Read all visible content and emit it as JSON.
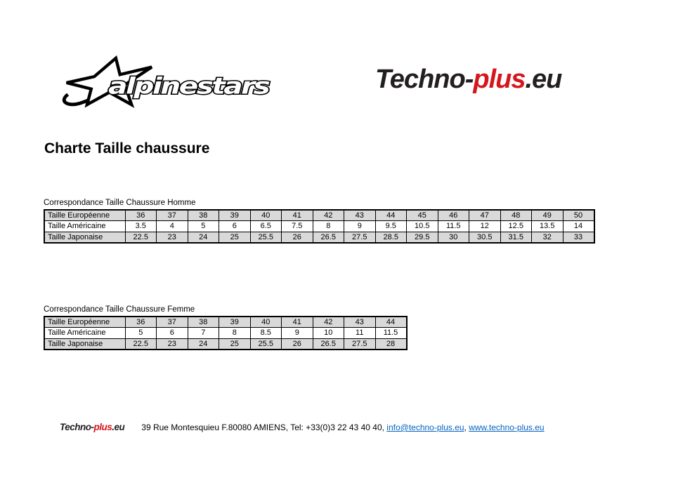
{
  "page": {
    "title": "Charte Taille chaussure"
  },
  "logos": {
    "alpinestars": {
      "text": "alpinestars"
    },
    "technoplus": {
      "part_black1": "Techno-",
      "part_red": "plus",
      "part_black2": ".eu"
    }
  },
  "tables": [
    {
      "caption": "Correspondance Taille Chaussure Homme",
      "rows": [
        {
          "label": "Taille Européenne",
          "shaded": true,
          "values": [
            "36",
            "37",
            "38",
            "39",
            "40",
            "41",
            "42",
            "43",
            "44",
            "45",
            "46",
            "47",
            "48",
            "49",
            "50"
          ]
        },
        {
          "label": "Taille Américaine",
          "shaded": false,
          "values": [
            "3.5",
            "4",
            "5",
            "6",
            "6.5",
            "7.5",
            "8",
            "9",
            "9.5",
            "10.5",
            "11.5",
            "12",
            "12.5",
            "13.5",
            "14"
          ]
        },
        {
          "label": "Taille Japonaise",
          "shaded": true,
          "values": [
            "22.5",
            "23",
            "24",
            "25",
            "25.5",
            "26",
            "26.5",
            "27.5",
            "28.5",
            "29.5",
            "30",
            "30.5",
            "31.5",
            "32",
            "33"
          ]
        }
      ]
    },
    {
      "caption": "Correspondance Taille Chaussure Femme",
      "rows": [
        {
          "label": "Taille Européenne",
          "shaded": true,
          "values": [
            "36",
            "37",
            "38",
            "39",
            "40",
            "41",
            "42",
            "43",
            "44"
          ]
        },
        {
          "label": "Taille Américaine",
          "shaded": false,
          "values": [
            "5",
            "6",
            "7",
            "8",
            "8.5",
            "9",
            "10",
            "11",
            "11.5"
          ]
        },
        {
          "label": "Taille Japonaise",
          "shaded": true,
          "values": [
            "22.5",
            "23",
            "24",
            "25",
            "25.5",
            "26",
            "26.5",
            "27.5",
            "28"
          ]
        }
      ]
    }
  ],
  "footer": {
    "logo": {
      "part_black1": "Techno-",
      "part_red": "plus",
      "part_black2": ".eu"
    },
    "address": "39 Rue Montesquieu F.80080 AMIENS, Tel: +33(0)3 22 43 40 40, ",
    "email": "info@techno-plus.eu",
    "separator": ",  ",
    "website": "www.techno-plus.eu"
  },
  "colors": {
    "shaded_row": "#d9d9d9",
    "link": "#0563c1",
    "logo_red": "#d6161d",
    "logo_black": "#231f20"
  }
}
